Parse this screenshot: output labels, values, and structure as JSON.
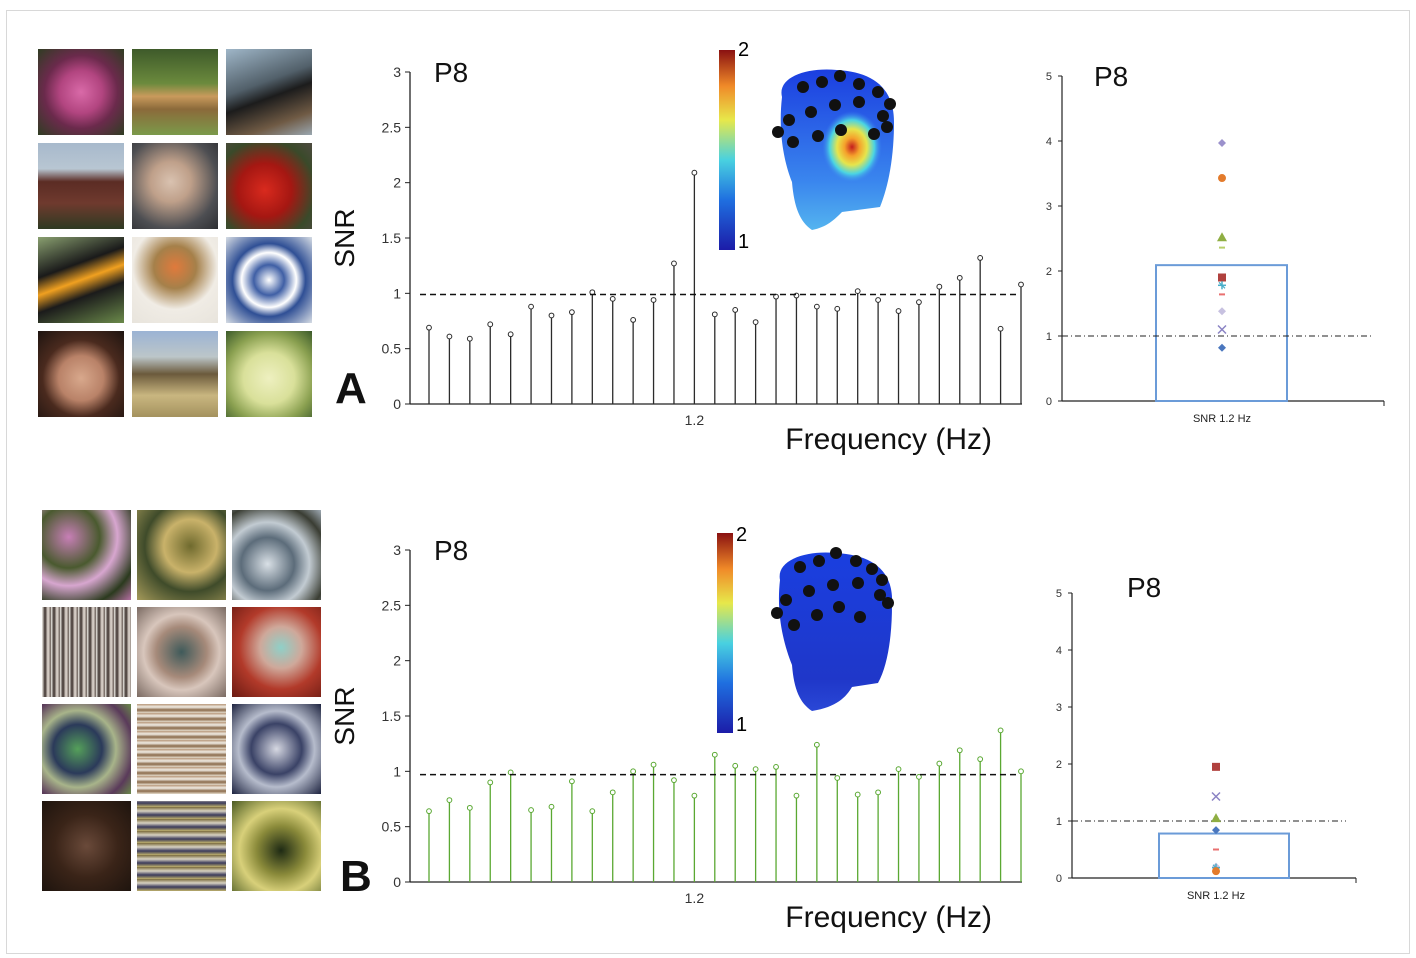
{
  "panel_a": {
    "letter": "A",
    "thumbnails": [
      "rose",
      "pony",
      "bird",
      "house",
      "face",
      "tomato",
      "toucan",
      "lamp",
      "plate",
      "woman-face",
      "horse",
      "apple"
    ],
    "spectrum": {
      "electrode": "P8",
      "y_label": "SNR",
      "x_label": "Frequency (Hz)",
      "x_tick": "1.2",
      "y_ticks": [
        "0",
        "0.5",
        "1",
        "1.5",
        "2",
        "2.5",
        "3"
      ],
      "stem_color": "#2b2b2b"
    },
    "head_map": {
      "scale_max": "2",
      "scale_min": "1"
    },
    "scatter": {
      "electrode": "P8",
      "x_label": "SNR 1.2 Hz",
      "y_ticks": [
        "0",
        "1",
        "2",
        "3",
        "4",
        "5"
      ]
    }
  },
  "panel_b": {
    "letter": "B",
    "thumbnails": [
      "scrambled-1",
      "scrambled-2",
      "scrambled-3",
      "scrambled-4",
      "scrambled-5",
      "scrambled-6",
      "scrambled-7",
      "scrambled-8",
      "scrambled-9",
      "scrambled-10",
      "scrambled-11",
      "scrambled-12"
    ],
    "spectrum": {
      "electrode": "P8",
      "y_label": "SNR",
      "x_label": "Frequency (Hz)",
      "x_tick": "1.2",
      "y_ticks": [
        "0",
        "0.5",
        "1",
        "1.5",
        "2",
        "2.5",
        "3"
      ],
      "stem_color": "#5aa832"
    },
    "head_map": {
      "scale_max": "2",
      "scale_min": "1"
    },
    "scatter": {
      "electrode": "P8",
      "x_label": "SNR 1.2 Hz",
      "y_ticks": [
        "0",
        "1",
        "2",
        "3",
        "4",
        "5"
      ]
    }
  },
  "chart_data": [
    {
      "type": "line",
      "panel": "A",
      "title": "P8",
      "xlabel": "Frequency (Hz)",
      "ylabel": "SNR",
      "ylim": [
        0,
        3
      ],
      "reference_line": 0.99,
      "marked_x": "1.2",
      "values": [
        0.69,
        0.61,
        0.59,
        0.72,
        0.63,
        0.88,
        0.8,
        0.83,
        1.01,
        0.95,
        0.76,
        0.94,
        1.27,
        2.09,
        0.81,
        0.85,
        0.74,
        0.97,
        0.98,
        0.88,
        0.86,
        1.02,
        0.94,
        0.84,
        0.92,
        1.06,
        1.14,
        1.32,
        0.68,
        1.08
      ],
      "highlight_index": 13
    },
    {
      "type": "bar",
      "panel": "A",
      "title": "P8",
      "categories": [
        "SNR 1.2 Hz"
      ],
      "values": [
        2.09
      ],
      "ylim": [
        0,
        5
      ],
      "reference_line": 1.0,
      "subjects": [
        {
          "marker": "diamond",
          "color": "#9b91cc",
          "value": 3.97
        },
        {
          "marker": "circle",
          "color": "#e37b2c",
          "value": 3.43
        },
        {
          "marker": "triangle",
          "color": "#8fae43",
          "value": 2.52
        },
        {
          "marker": "dash",
          "color": "#b7cf6a",
          "value": 2.36
        },
        {
          "marker": "square",
          "color": "#b0413e",
          "value": 1.9
        },
        {
          "marker": "star",
          "color": "#4aaec9",
          "value": 1.78
        },
        {
          "marker": "dash",
          "color": "#e97070",
          "value": 1.64
        },
        {
          "marker": "diamond",
          "color": "#c7c1e0",
          "value": 1.38
        },
        {
          "marker": "cross",
          "color": "#8a82c4",
          "value": 1.1
        },
        {
          "marker": "diamond",
          "color": "#4b77be",
          "value": 0.82
        }
      ]
    },
    {
      "type": "line",
      "panel": "B",
      "title": "P8",
      "xlabel": "Frequency (Hz)",
      "ylabel": "SNR",
      "ylim": [
        0,
        3
      ],
      "reference_line": 0.97,
      "marked_x": "1.2",
      "values": [
        0.64,
        0.74,
        0.67,
        0.9,
        0.99,
        0.65,
        0.68,
        0.91,
        0.64,
        0.81,
        1.0,
        1.06,
        0.92,
        0.78,
        1.15,
        1.05,
        1.02,
        1.04,
        0.78,
        1.24,
        0.94,
        0.79,
        0.81,
        1.02,
        0.95,
        1.07,
        1.19,
        1.11,
        1.37,
        1.0
      ],
      "highlight_index": 13
    },
    {
      "type": "bar",
      "panel": "B",
      "title": "P8",
      "categories": [
        "SNR 1.2 Hz"
      ],
      "values": [
        0.78
      ],
      "ylim": [
        0,
        5
      ],
      "reference_line": 1.0,
      "subjects": [
        {
          "marker": "square",
          "color": "#b0413e",
          "value": 1.95
        },
        {
          "marker": "cross",
          "color": "#8a82c4",
          "value": 1.43
        },
        {
          "marker": "triangle",
          "color": "#8fae43",
          "value": 1.05
        },
        {
          "marker": "diamond",
          "color": "#4b77be",
          "value": 0.84
        },
        {
          "marker": "dash",
          "color": "#e97070",
          "value": 0.5
        },
        {
          "marker": "diamond",
          "color": "#c7c1e0",
          "value": 0.2
        },
        {
          "marker": "star",
          "color": "#4aaec9",
          "value": 0.18
        },
        {
          "marker": "circle",
          "color": "#e37b2c",
          "value": 0.12
        }
      ]
    }
  ]
}
